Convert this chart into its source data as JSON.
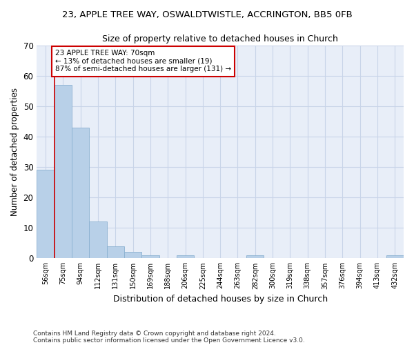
{
  "title1": "23, APPLE TREE WAY, OSWALDTWISTLE, ACCRINGTON, BB5 0FB",
  "title2": "Size of property relative to detached houses in Church",
  "xlabel": "Distribution of detached houses by size in Church",
  "ylabel": "Number of detached properties",
  "categories": [
    "56sqm",
    "75sqm",
    "94sqm",
    "112sqm",
    "131sqm",
    "150sqm",
    "169sqm",
    "188sqm",
    "206sqm",
    "225sqm",
    "244sqm",
    "263sqm",
    "282sqm",
    "300sqm",
    "319sqm",
    "338sqm",
    "357sqm",
    "376sqm",
    "394sqm",
    "413sqm",
    "432sqm"
  ],
  "values": [
    29,
    57,
    43,
    12,
    4,
    2,
    1,
    0,
    1,
    0,
    0,
    0,
    1,
    0,
    0,
    0,
    0,
    0,
    0,
    0,
    1
  ],
  "bar_color": "#b8d0e8",
  "bar_edge_color": "#8ab0d0",
  "ylim": [
    0,
    70
  ],
  "yticks": [
    0,
    10,
    20,
    30,
    40,
    50,
    60,
    70
  ],
  "grid_color": "#c8d4e8",
  "bg_color": "#e8eef8",
  "annotation_text": "23 APPLE TREE WAY: 70sqm\n← 13% of detached houses are smaller (19)\n87% of semi-detached houses are larger (131) →",
  "annotation_box_color": "#ffffff",
  "annotation_box_edge": "#cc0000",
  "red_line_x": 0.5,
  "footer1": "Contains HM Land Registry data © Crown copyright and database right 2024.",
  "footer2": "Contains public sector information licensed under the Open Government Licence v3.0."
}
